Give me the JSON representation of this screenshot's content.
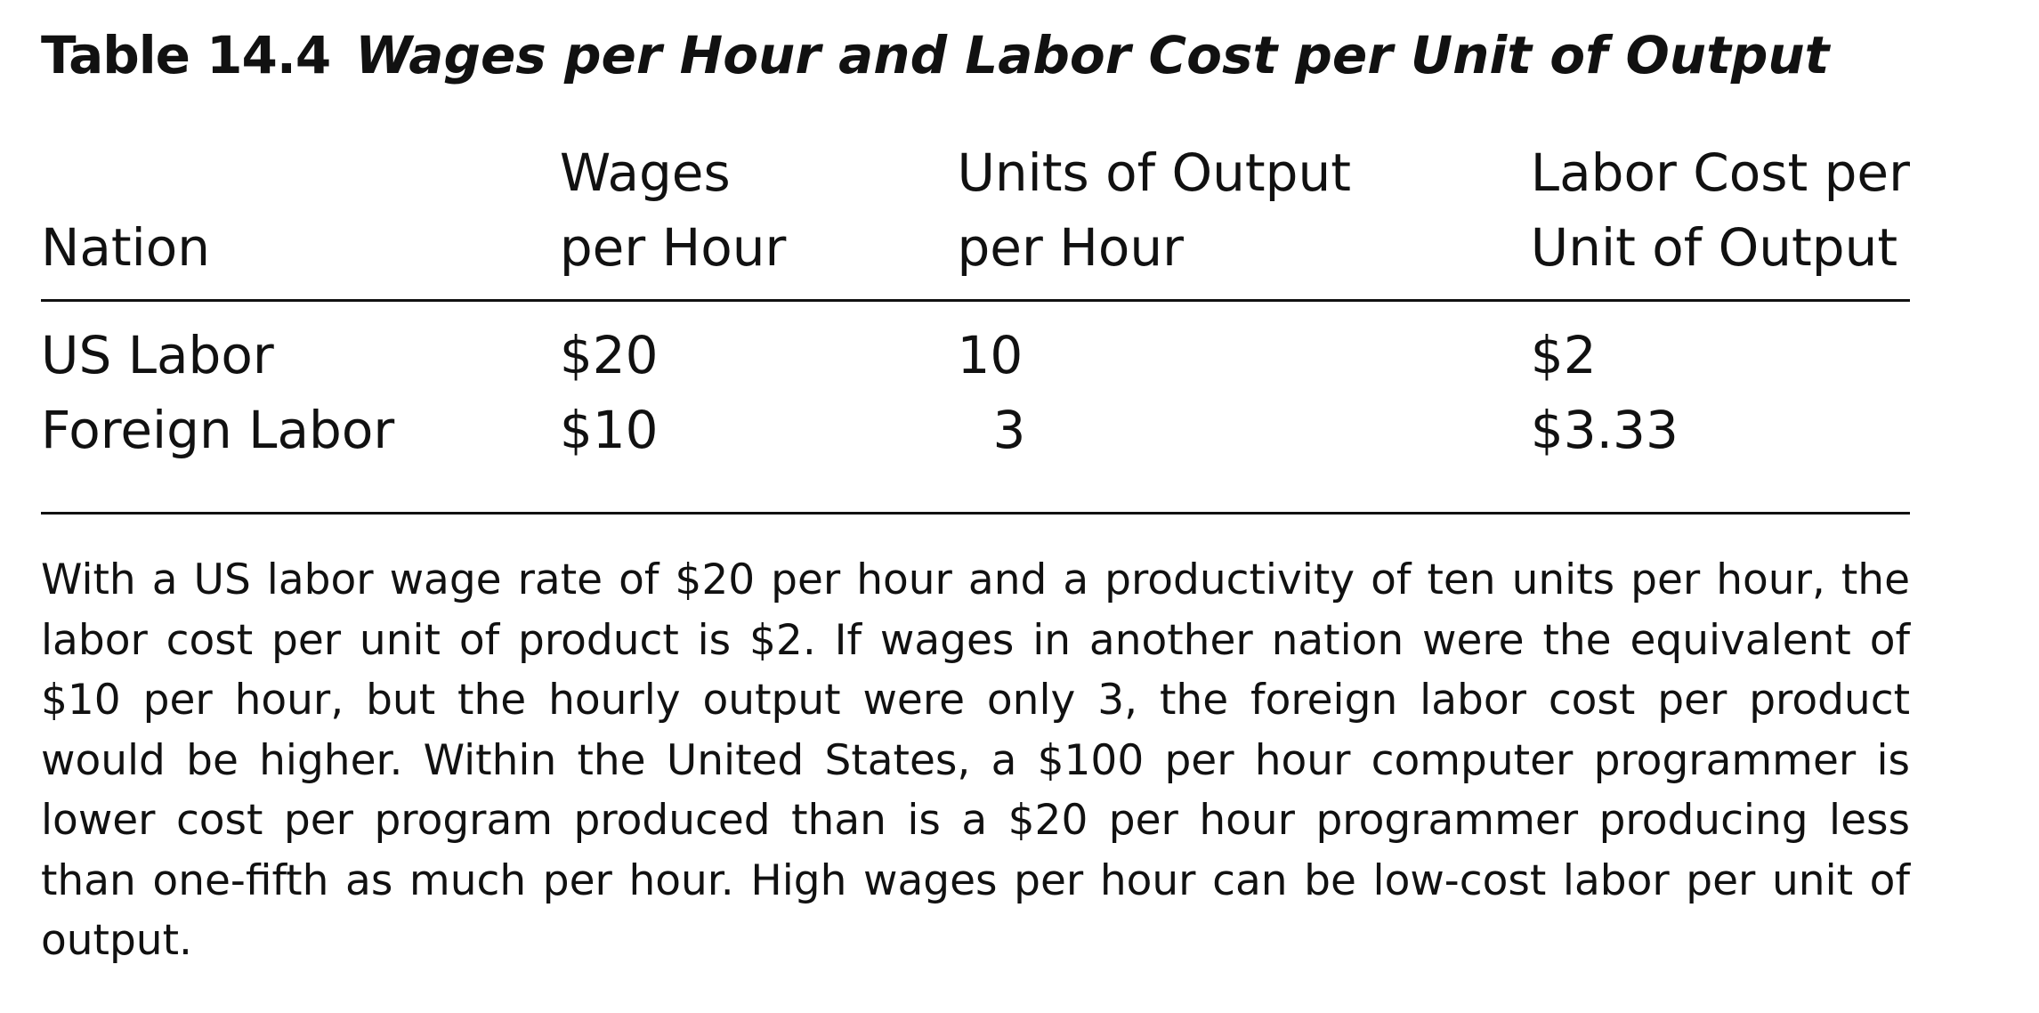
{
  "table": {
    "number": "Table 14.4",
    "caption": "Wages per Hour and Labor Cost per Unit of Output",
    "headers": {
      "nation": "Nation",
      "wages_line1": "Wages",
      "wages_line2": "per Hour",
      "output_line1": "Units of Output",
      "output_line2": "per Hour",
      "cost_line1": "Labor Cost per",
      "cost_line2": "Unit of Output"
    },
    "rows": [
      {
        "nation": "US Labor",
        "wages": "$20",
        "output": "10",
        "cost": "$2"
      },
      {
        "nation": "Foreign Labor",
        "wages": "$10",
        "output": "3",
        "cost": "$3.33"
      }
    ]
  },
  "note": "With a US labor wage rate of $20 per hour and a productivity of ten units per hour, the labor cost per unit of product is $2. If wages in another nation were the equivalent of $10 per hour, but the hourly output were only 3, the foreign labor cost per product would be higher. Within the United States, a $100 per hour computer programmer is lower cost per program produced than is a $20 per hour programmer producing less than one-fifth as much per hour. High wages per hour can be low-cost labor per unit of output."
}
